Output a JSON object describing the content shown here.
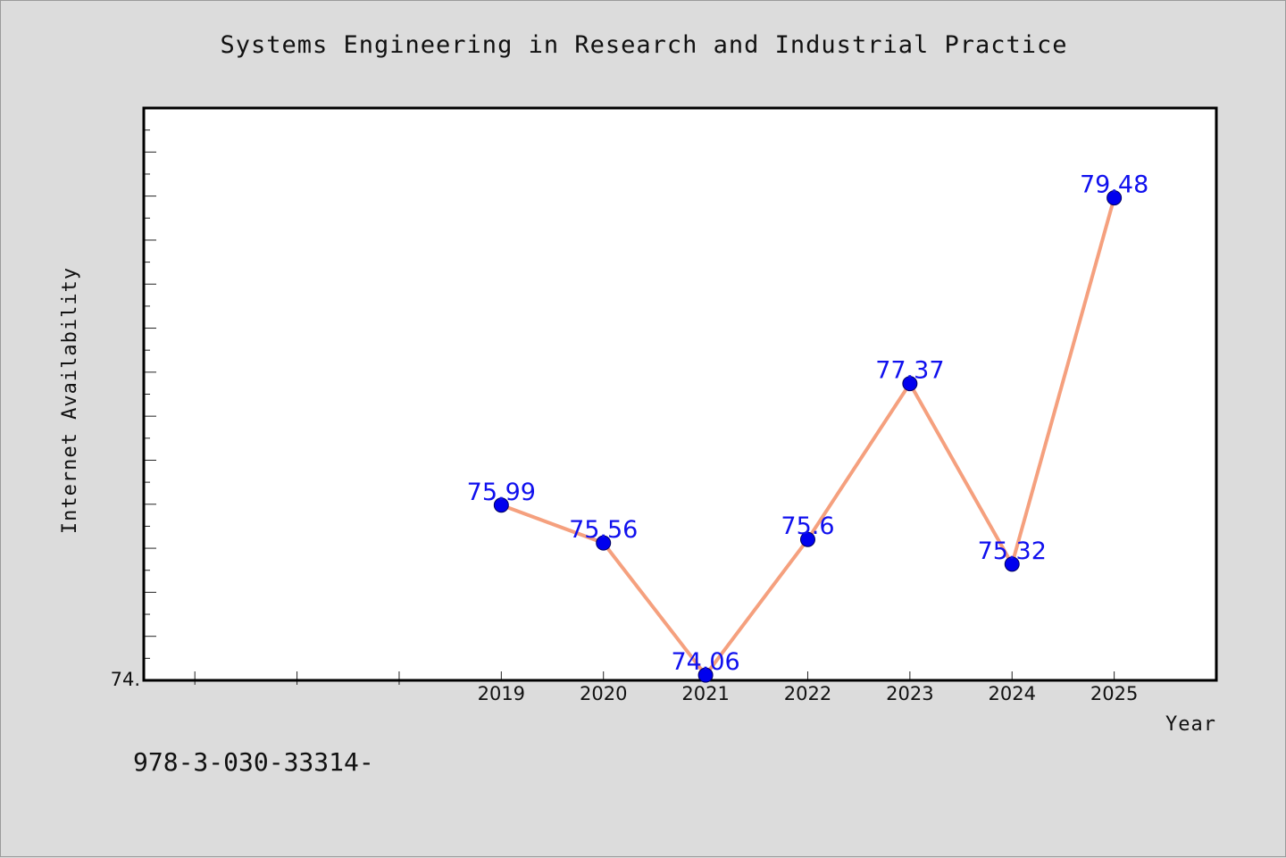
{
  "title": "Systems Engineering in Research and Industrial Practice",
  "footer_code": "978-3-030-33314-",
  "colors": {
    "background": "#dcdcdc",
    "plot_background": "#ffffff",
    "line": "#f5a07e",
    "marker": "#0000ee",
    "label": "#1010ee"
  },
  "chart_data": {
    "type": "line",
    "title": "Systems Engineering in Research and Industrial Practice",
    "xlabel": "Year",
    "ylabel": "Internet Availability",
    "categories": [
      "2019",
      "2020",
      "2021",
      "2022",
      "2023",
      "2024",
      "2025"
    ],
    "series": [
      {
        "values": [
          75.99,
          75.56,
          74.06,
          75.6,
          77.37,
          75.32,
          79.48
        ],
        "labels": [
          "75.99",
          "75.56",
          "74.06",
          "75.6",
          "77.37",
          "75.32",
          "79.48"
        ]
      }
    ],
    "ytick_labels": [
      "74."
    ],
    "ylim": [
      74.0,
      80.5
    ],
    "x_domain": [
      2015.5,
      2026
    ],
    "legend": "none",
    "grid": false
  }
}
